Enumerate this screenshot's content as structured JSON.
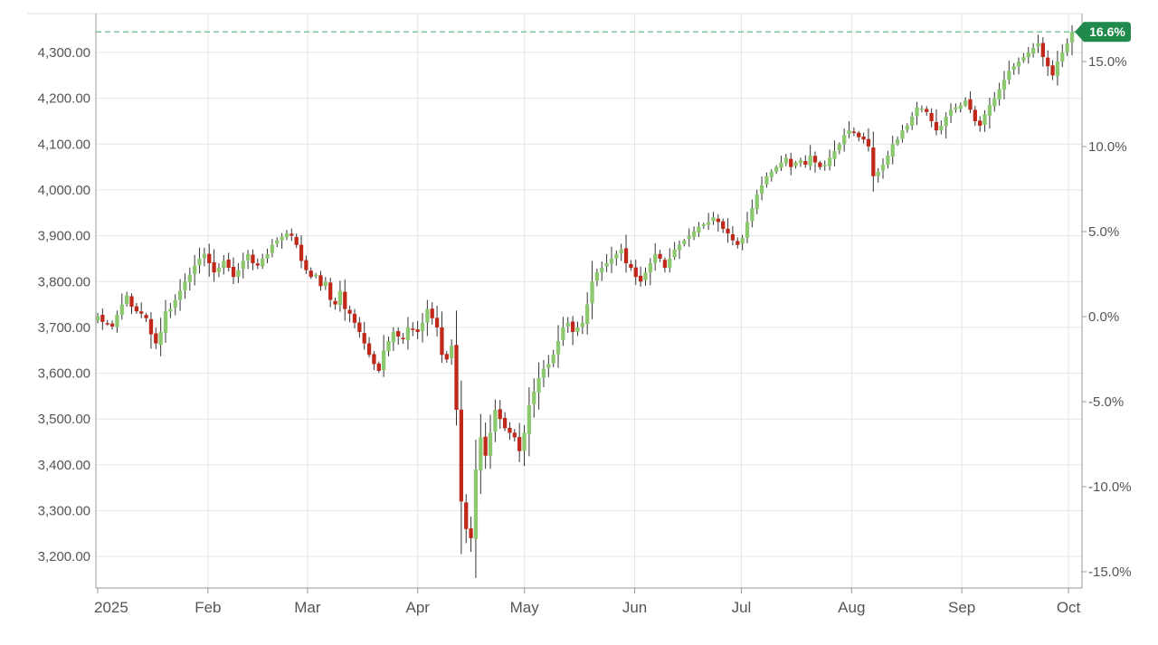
{
  "chart_data": {
    "type": "candlestick",
    "price_axis": {
      "min": 3155,
      "max": 4355,
      "ticks": [
        4300,
        4200,
        4100,
        4000,
        3900,
        3800,
        3700,
        3600,
        3500,
        3400,
        3300,
        3200
      ],
      "tick_labels": [
        "4,300.00",
        "4,200.00",
        "4,100.00",
        "4,000.00",
        "3,900.00",
        "3,800.00",
        "3,700.00",
        "3,600.00",
        "3,500.00",
        "3,400.00",
        "3,300.00",
        "3,200.00"
      ]
    },
    "percent_axis": {
      "ticks": [
        15,
        10,
        5,
        0,
        -5,
        -10,
        -15
      ],
      "tick_labels": [
        "15.0%",
        "10.0%",
        "5.0%",
        "0.0%",
        "-5.0%",
        "-10.0%",
        "-15.0%"
      ]
    },
    "x_axis": {
      "start_date": "2025-01-01",
      "end_date": "2025-10-02",
      "ticks": [
        "2025-01-01",
        "2025-02-01",
        "2025-03-01",
        "2025-04-01",
        "2025-05-01",
        "2025-06-01",
        "2025-07-01",
        "2025-08-01",
        "2025-09-01",
        "2025-10-01"
      ],
      "tick_labels": [
        "2025",
        "Feb",
        "Mar",
        "Apr",
        "May",
        "Jun",
        "Jul",
        "Aug",
        "Sep",
        "Oct"
      ]
    },
    "current": {
      "value": 4345,
      "change_label": "16.6%"
    },
    "colors": {
      "up": "#8cc96e",
      "down": "#c0281a",
      "wick": "#333333",
      "grid": "#e6e6e6",
      "axis": "#999999",
      "badge": "#1f8a4c",
      "reference_line": "#7dc59a"
    },
    "grid": true,
    "closes": [
      3725,
      3712,
      3708,
      3702,
      3728,
      3750,
      3770,
      3745,
      3735,
      3730,
      3720,
      3685,
      3665,
      3690,
      3735,
      3740,
      3760,
      3780,
      3800,
      3815,
      3835,
      3850,
      3860,
      3840,
      3820,
      3830,
      3845,
      3830,
      3810,
      3825,
      3845,
      3860,
      3840,
      3835,
      3850,
      3860,
      3880,
      3890,
      3898,
      3905,
      3900,
      3880,
      3845,
      3825,
      3810,
      3815,
      3790,
      3800,
      3760,
      3750,
      3780,
      3740,
      3730,
      3710,
      3690,
      3665,
      3640,
      3620,
      3605,
      3650,
      3670,
      3690,
      3680,
      3675,
      3700,
      3695,
      3690,
      3710,
      3740,
      3720,
      3700,
      3640,
      3630,
      3660,
      3520,
      3320,
      3260,
      3240,
      3390,
      3460,
      3420,
      3470,
      3520,
      3500,
      3480,
      3470,
      3460,
      3430,
      3470,
      3530,
      3560,
      3590,
      3610,
      3620,
      3640,
      3670,
      3700,
      3710,
      3690,
      3700,
      3710,
      3750,
      3800,
      3820,
      3830,
      3840,
      3850,
      3860,
      3870,
      3840,
      3830,
      3810,
      3800,
      3820,
      3840,
      3860,
      3850,
      3830,
      3850,
      3870,
      3880,
      3890,
      3900,
      3910,
      3920,
      3925,
      3930,
      3940,
      3930,
      3915,
      3905,
      3890,
      3880,
      3895,
      3930,
      3960,
      3990,
      4010,
      4030,
      4040,
      4050,
      4060,
      4070,
      4050,
      4060,
      4065,
      4055,
      4075,
      4060,
      4050,
      4055,
      4070,
      4085,
      4100,
      4120,
      4130,
      4125,
      4115,
      4110,
      4095,
      4030,
      4040,
      4055,
      4075,
      4100,
      4110,
      4130,
      4140,
      4160,
      4180,
      4178,
      4170,
      4150,
      4130,
      4140,
      4160,
      4175,
      4180,
      4185,
      4195,
      4175,
      4150,
      4140,
      4165,
      4185,
      4200,
      4220,
      4240,
      4260,
      4270,
      4280,
      4290,
      4300,
      4310,
      4320,
      4290,
      4270,
      4250,
      4280,
      4300,
      4320,
      4345
    ]
  }
}
